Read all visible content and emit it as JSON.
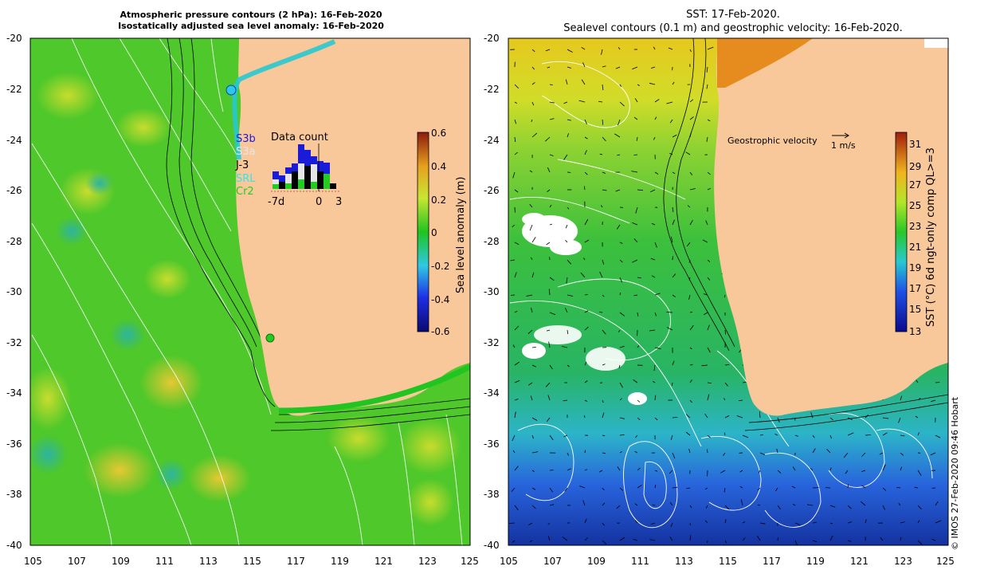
{
  "left_panel": {
    "title_line1": "Atmospheric pressure contours (2 hPa): 16-Feb-2020",
    "title_line2": "Isostatically adjusted sea level anomaly: 16-Feb-2020",
    "colorbar": {
      "label": "Sea level anomaly (m)",
      "ticks": [
        "0.6",
        "0.4",
        "0.2",
        "0",
        "-0.2",
        "-0.4",
        "-0.6"
      ]
    },
    "inset": {
      "title": "Data count",
      "legend": [
        "S3b",
        "S3a",
        "J-3",
        "SRL",
        "Cr2"
      ],
      "legend_colors": [
        "#1a1ad9",
        "#e6e6e6",
        "#000000",
        "#33e6e6",
        "#22cc22"
      ],
      "x_ticks": [
        "-7d",
        "0",
        "3"
      ]
    }
  },
  "right_panel": {
    "title_line1": "SST: 17-Feb-2020.",
    "title_line2": "Sealevel contours (0.1 m) and geostrophic velocity: 16-Feb-2020.",
    "velocity_label": "Geostrophic velocity",
    "velocity_scale": "1 m/s",
    "colorbar": {
      "label": "SST (°C) 6d ngt-only comp QL>=3",
      "ticks": [
        "31",
        "29",
        "27",
        "25",
        "23",
        "21",
        "19",
        "17",
        "15",
        "13"
      ]
    }
  },
  "axes": {
    "lat_ticks": [
      "-20",
      "-22",
      "-24",
      "-26",
      "-28",
      "-30",
      "-32",
      "-34",
      "-36",
      "-38",
      "-40"
    ],
    "lon_ticks": [
      "105",
      "107",
      "109",
      "111",
      "113",
      "115",
      "117",
      "119",
      "121",
      "123",
      "125"
    ]
  },
  "credit": "©  IMOS 27-Feb-2020 09:46 Hobart",
  "colors": {
    "land": "#f9c89a",
    "ocean_green": "#4ec82a",
    "ssa_yellow": "#b8dc30"
  }
}
